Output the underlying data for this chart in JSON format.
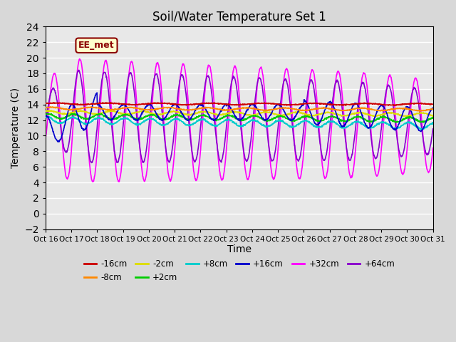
{
  "title": "Soil/Water Temperature Set 1",
  "xlabel": "Time",
  "ylabel": "Temperature (C)",
  "xlim": [
    0,
    15
  ],
  "ylim": [
    -2,
    24
  ],
  "yticks": [
    -2,
    0,
    2,
    4,
    6,
    8,
    10,
    12,
    14,
    16,
    18,
    20,
    22,
    24
  ],
  "xtick_labels": [
    "Oct 16",
    "Oct 17",
    "Oct 18",
    "Oct 19",
    "Oct 20",
    "Oct 21",
    "Oct 22",
    "Oct 23",
    "Oct 24",
    "Oct 25",
    "Oct 26",
    "Oct 27",
    "Oct 28",
    "Oct 29",
    "Oct 30",
    "Oct 31"
  ],
  "watermark": "EE_met",
  "fig_bg_color": "#d8d8d8",
  "ax_bg_color": "#e8e8e8",
  "legend": [
    {
      "label": "-16cm",
      "color": "#cc0000"
    },
    {
      "label": "-8cm",
      "color": "#ff8800"
    },
    {
      "label": "-2cm",
      "color": "#dddd00"
    },
    {
      "label": "+2cm",
      "color": "#00cc00"
    },
    {
      "label": "+8cm",
      "color": "#00cccc"
    },
    {
      "label": "+16cm",
      "color": "#0000cc"
    },
    {
      "label": "+32cm",
      "color": "#ff00ff"
    },
    {
      "label": "+64cm",
      "color": "#8800cc"
    }
  ]
}
